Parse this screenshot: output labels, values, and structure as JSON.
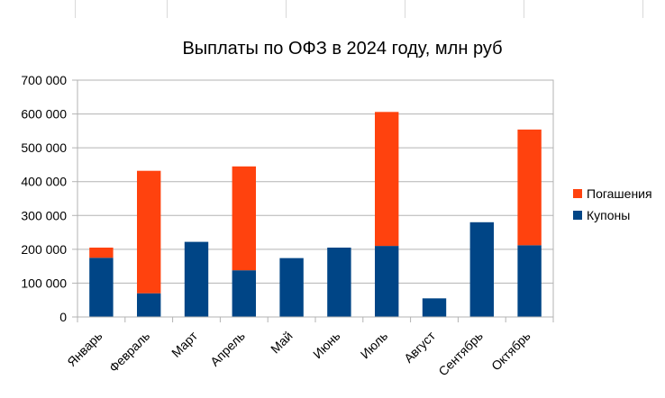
{
  "chart_data": {
    "type": "bar",
    "stacked": true,
    "title": "Выплаты по ОФЗ в 2024 году, млн руб",
    "xlabel": "",
    "ylabel": "",
    "ylim": [
      0,
      700000
    ],
    "yticks": [
      0,
      100000,
      200000,
      300000,
      400000,
      500000,
      600000,
      700000
    ],
    "ytick_labels": [
      "0",
      "100 000",
      "200 000",
      "300 000",
      "400 000",
      "500 000",
      "600 000",
      "700 000"
    ],
    "grid": true,
    "legend_position": "right",
    "categories": [
      "Январь",
      "Февраль",
      "Март",
      "Апрель",
      "Май",
      "Июнь",
      "Июль",
      "Август",
      "Сентябрь",
      "Октябрь"
    ],
    "series": [
      {
        "name": "Купоны",
        "color": "#004586",
        "values": [
          175000,
          70000,
          222000,
          138000,
          174000,
          205000,
          210000,
          55000,
          280000,
          212000
        ]
      },
      {
        "name": "Погашения",
        "color": "#ff420e",
        "values": [
          30000,
          362000,
          0,
          307000,
          0,
          0,
          396000,
          0,
          0,
          342000
        ]
      }
    ]
  }
}
